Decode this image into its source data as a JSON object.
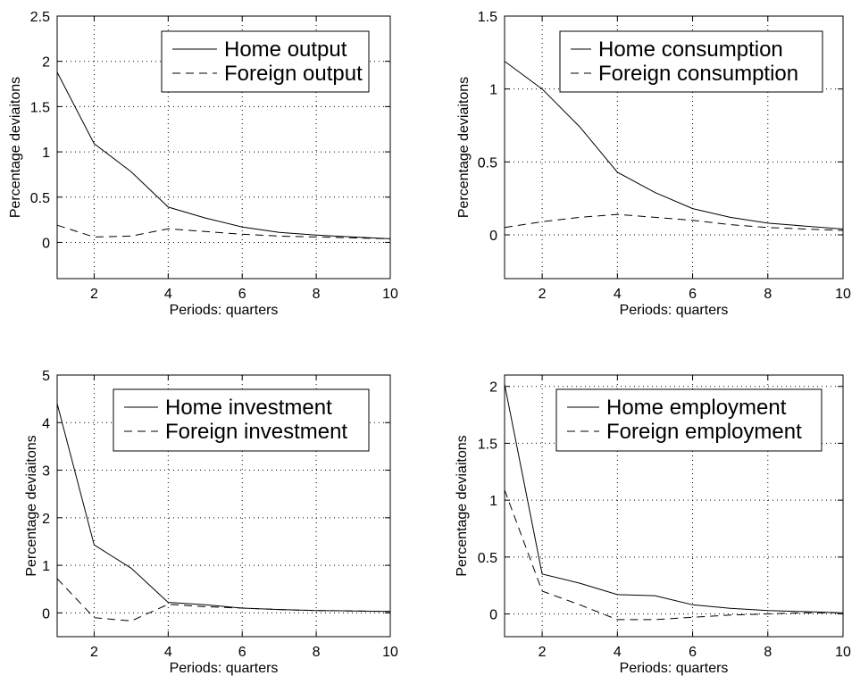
{
  "chart_data": [
    {
      "type": "line",
      "xlabel": "Periods: quarters",
      "ylabel": "Percentage deviaitons",
      "xlim": [
        1,
        10
      ],
      "ylim": [
        -0.4,
        2.5
      ],
      "xticks": [
        2,
        4,
        6,
        8,
        10
      ],
      "yticks": [
        0,
        0.5,
        1,
        1.5,
        2,
        2.5
      ],
      "grid": true,
      "legend_position": "top-right",
      "x": [
        1,
        2,
        3,
        4,
        5,
        6,
        7,
        8,
        9,
        10
      ],
      "series": [
        {
          "name": "Home output",
          "style": "solid",
          "values": [
            1.88,
            1.09,
            0.78,
            0.39,
            0.27,
            0.17,
            0.11,
            0.08,
            0.06,
            0.04
          ]
        },
        {
          "name": "Foreign output",
          "style": "dashed",
          "values": [
            0.19,
            0.06,
            0.07,
            0.15,
            0.12,
            0.09,
            0.07,
            0.06,
            0.05,
            0.04
          ]
        }
      ]
    },
    {
      "type": "line",
      "xlabel": "Periods: quarters",
      "ylabel": "Percentage deviaitons",
      "xlim": [
        1,
        10
      ],
      "ylim": [
        -0.3,
        1.5
      ],
      "xticks": [
        2,
        4,
        6,
        8,
        10
      ],
      "yticks": [
        0,
        0.5,
        1,
        1.5
      ],
      "grid": true,
      "legend_position": "top-right",
      "x": [
        1,
        2,
        3,
        4,
        5,
        6,
        7,
        8,
        9,
        10
      ],
      "series": [
        {
          "name": "Home consumption",
          "style": "solid",
          "values": [
            1.19,
            1.0,
            0.74,
            0.43,
            0.29,
            0.18,
            0.12,
            0.08,
            0.06,
            0.04
          ]
        },
        {
          "name": "Foreign consumption",
          "style": "dashed",
          "values": [
            0.05,
            0.09,
            0.12,
            0.14,
            0.12,
            0.1,
            0.07,
            0.05,
            0.04,
            0.03
          ]
        }
      ]
    },
    {
      "type": "line",
      "xlabel": "Periods: quarters",
      "ylabel": "Percentage deviaitons",
      "xlim": [
        1,
        10
      ],
      "ylim": [
        -0.5,
        5
      ],
      "xticks": [
        2,
        4,
        6,
        8,
        10
      ],
      "yticks": [
        0,
        1,
        2,
        3,
        4,
        5
      ],
      "grid": true,
      "legend_position": "top-right",
      "x": [
        1,
        2,
        3,
        4,
        5,
        6,
        7,
        8,
        9,
        10
      ],
      "series": [
        {
          "name": "Home investment",
          "style": "solid",
          "values": [
            4.4,
            1.43,
            0.94,
            0.22,
            0.17,
            0.1,
            0.07,
            0.05,
            0.04,
            0.03
          ]
        },
        {
          "name": "Foreign investment",
          "style": "dashed",
          "values": [
            0.72,
            -0.1,
            -0.17,
            0.18,
            0.13,
            0.1,
            0.07,
            0.05,
            0.04,
            0.03
          ]
        }
      ]
    },
    {
      "type": "line",
      "xlabel": "Periods: quarters",
      "ylabel": "Percentage deviaitons",
      "xlim": [
        1,
        10
      ],
      "ylim": [
        -0.2,
        2.1
      ],
      "xticks": [
        2,
        4,
        6,
        8,
        10
      ],
      "yticks": [
        0,
        0.5,
        1,
        1.5,
        2
      ],
      "grid": true,
      "legend_position": "top-right",
      "x": [
        1,
        2,
        3,
        4,
        5,
        6,
        7,
        8,
        9,
        10
      ],
      "series": [
        {
          "name": "Home employment",
          "style": "solid",
          "values": [
            2.02,
            0.35,
            0.27,
            0.17,
            0.16,
            0.08,
            0.05,
            0.03,
            0.02,
            0.01
          ]
        },
        {
          "name": "Foreign employment",
          "style": "dashed",
          "values": [
            1.09,
            0.2,
            0.08,
            -0.05,
            -0.05,
            -0.03,
            -0.01,
            0.0,
            0.01,
            0.01
          ]
        }
      ]
    }
  ]
}
